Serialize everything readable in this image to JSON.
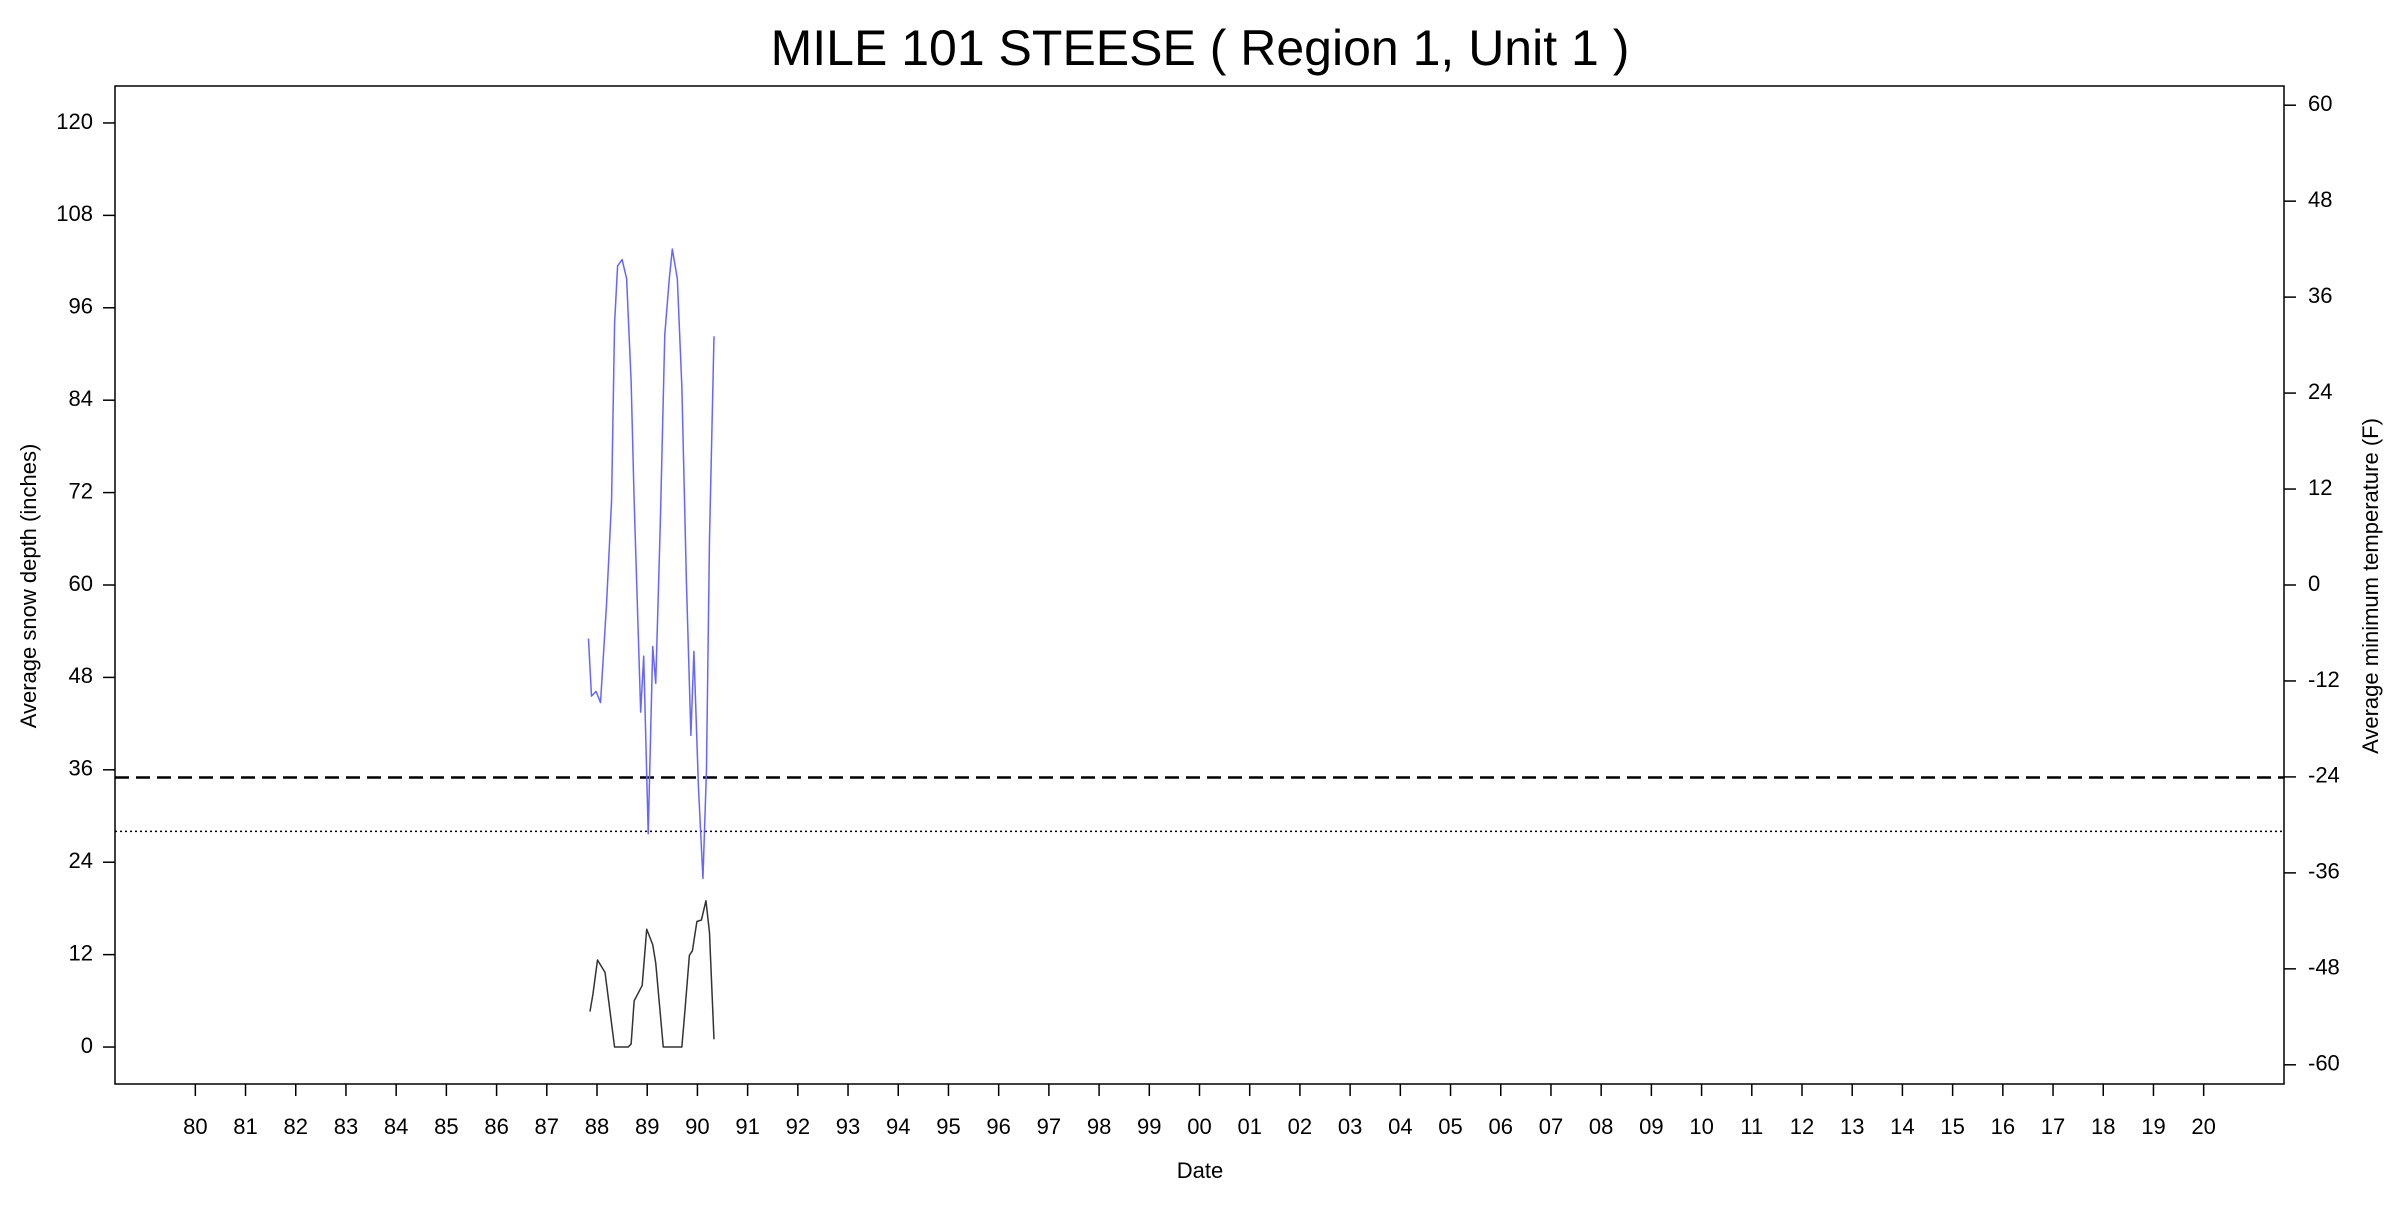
{
  "chart_data": {
    "type": "line",
    "title": "MILE 101 STEESE ( Region 1, Unit 1 )",
    "xlabel": "Date",
    "ylabel": "Average snow depth (inches)",
    "y2label": "Average minimum temperature (F)",
    "y2color": "#0000ff",
    "xlim": [
      1978.4,
      2021.6
    ],
    "ylim": [
      -4.8,
      124.8
    ],
    "y2lim": [
      -62.4,
      62.4
    ],
    "xticks": [
      {
        "value": 1980,
        "label": "80"
      },
      {
        "value": 1981,
        "label": "81"
      },
      {
        "value": 1982,
        "label": "82"
      },
      {
        "value": 1983,
        "label": "83"
      },
      {
        "value": 1984,
        "label": "84"
      },
      {
        "value": 1985,
        "label": "85"
      },
      {
        "value": 1986,
        "label": "86"
      },
      {
        "value": 1987,
        "label": "87"
      },
      {
        "value": 1988,
        "label": "88"
      },
      {
        "value": 1989,
        "label": "89"
      },
      {
        "value": 1990,
        "label": "90"
      },
      {
        "value": 1991,
        "label": "91"
      },
      {
        "value": 1992,
        "label": "92"
      },
      {
        "value": 1993,
        "label": "93"
      },
      {
        "value": 1994,
        "label": "94"
      },
      {
        "value": 1995,
        "label": "95"
      },
      {
        "value": 1996,
        "label": "96"
      },
      {
        "value": 1997,
        "label": "97"
      },
      {
        "value": 1998,
        "label": "98"
      },
      {
        "value": 1999,
        "label": "99"
      },
      {
        "value": 2000,
        "label": "00"
      },
      {
        "value": 2001,
        "label": "01"
      },
      {
        "value": 2002,
        "label": "02"
      },
      {
        "value": 2003,
        "label": "03"
      },
      {
        "value": 2004,
        "label": "04"
      },
      {
        "value": 2005,
        "label": "05"
      },
      {
        "value": 2006,
        "label": "06"
      },
      {
        "value": 2007,
        "label": "07"
      },
      {
        "value": 2008,
        "label": "08"
      },
      {
        "value": 2009,
        "label": "09"
      },
      {
        "value": 2010,
        "label": "10"
      },
      {
        "value": 2011,
        "label": "11"
      },
      {
        "value": 2012,
        "label": "12"
      },
      {
        "value": 2013,
        "label": "13"
      },
      {
        "value": 2014,
        "label": "14"
      },
      {
        "value": 2015,
        "label": "15"
      },
      {
        "value": 2016,
        "label": "16"
      },
      {
        "value": 2017,
        "label": "17"
      },
      {
        "value": 2018,
        "label": "18"
      },
      {
        "value": 2019,
        "label": "19"
      },
      {
        "value": 2020,
        "label": "20"
      }
    ],
    "yticks": [
      0,
      12,
      24,
      36,
      48,
      60,
      72,
      84,
      96,
      108,
      120
    ],
    "y2ticks": [
      -60,
      -48,
      -36,
      -24,
      -12,
      0,
      12,
      24,
      36,
      48,
      60
    ],
    "hlines": [
      {
        "value": 35,
        "style": "dashed",
        "color": "#000000"
      },
      {
        "value": 28,
        "style": "dotted",
        "color": "#000000"
      }
    ],
    "series": [
      {
        "color": "#333333",
        "x": [
          1987.86,
          1987.92,
          1988.01,
          1988.16,
          1988.35,
          1988.62,
          1988.68,
          1988.74,
          1988.9,
          1988.99,
          1989.11,
          1989.17,
          1989.32,
          1989.69,
          1989.75,
          1989.84,
          1989.9,
          1989.99,
          1990.08,
          1990.17,
          1990.24,
          1990.33
        ],
        "values": [
          4.6,
          6.9,
          11.3,
          9.7,
          0,
          0,
          0.4,
          6,
          8,
          15.3,
          13.3,
          10.9,
          0,
          0,
          4.6,
          11.9,
          12.5,
          16.3,
          16.5,
          19,
          14.9,
          1
        ]
      },
      {
        "color": "#6666ff",
        "axis": "y2",
        "x": [
          1987.83,
          1987.89,
          1987.98,
          1988.07,
          1988.19,
          1988.29,
          1988.35,
          1988.41,
          1988.5,
          1988.59,
          1988.68,
          1988.74,
          1988.87,
          1988.93,
          1989.02,
          1989.11,
          1989.17,
          1989.26,
          1989.35,
          1989.44,
          1989.5,
          1989.6,
          1989.69,
          1989.78,
          1989.87,
          1989.93,
          1990.02,
          1990.11,
          1990.18,
          1990.24,
          1990.33
        ],
        "values": [
          -6.7,
          -13.9,
          -13.3,
          -14.7,
          -2.4,
          10.5,
          32.7,
          39.9,
          40.7,
          38.3,
          25.4,
          10.5,
          -15.9,
          -8.9,
          -31.1,
          -7.7,
          -12.3,
          7.5,
          31.3,
          38.3,
          42,
          38.3,
          24.8,
          0.6,
          -18.8,
          -8.3,
          -25.2,
          -36.7,
          -23.2,
          5.6,
          31.1
        ]
      }
    ]
  }
}
